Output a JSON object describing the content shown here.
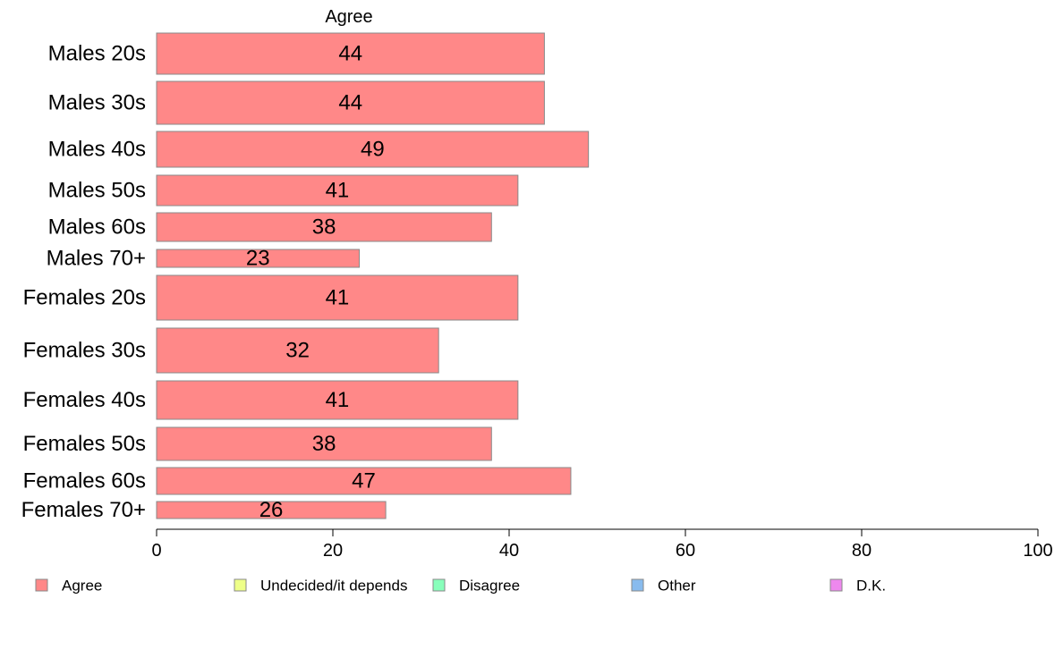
{
  "chart_data": {
    "type": "bar",
    "orientation": "horizontal",
    "title": "Agree",
    "categories": [
      "Males 20s",
      "Males 30s",
      "Males 40s",
      "Males 50s",
      "Males 60s",
      "Males 70+",
      "Females 20s",
      "Females 30s",
      "Females 40s",
      "Females 50s",
      "Females 60s",
      "Females 70+"
    ],
    "series": [
      {
        "name": "Agree",
        "values": [
          44,
          44,
          49,
          41,
          38,
          23,
          41,
          32,
          41,
          38,
          47,
          26
        ]
      }
    ],
    "xlim": [
      0,
      100
    ],
    "xticks": [
      0,
      20,
      40,
      60,
      80,
      100
    ],
    "xlabel": "",
    "ylabel": "",
    "grid": false,
    "legend": {
      "placement": "bottom",
      "items": [
        {
          "label": "Agree",
          "color": "#ff8888"
        },
        {
          "label": "Undecided/it depends",
          "color": "#eeff88"
        },
        {
          "label": "Disagree",
          "color": "#88ffbb"
        },
        {
          "label": "Other",
          "color": "#88bbee"
        },
        {
          "label": "D.K.",
          "color": "#ee88ee"
        }
      ]
    },
    "colors": {
      "bar": "#ff8888",
      "bar_stroke": "#888888",
      "axis": "#000000"
    }
  }
}
